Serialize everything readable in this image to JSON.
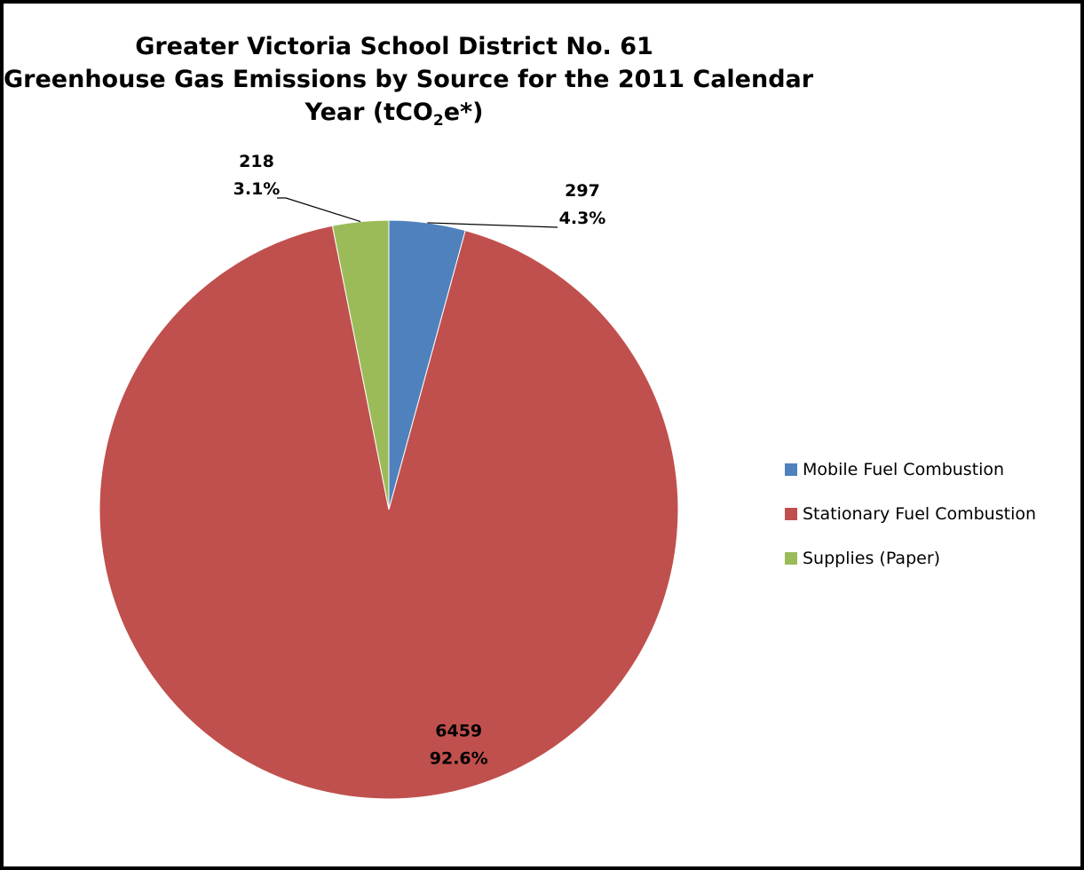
{
  "chart_data": {
    "type": "pie",
    "title_lines": [
      "Greater Victoria School District No. 61",
      "Greenhouse Gas Emissions by Source for the 2011 Calendar"
    ],
    "title_last_prefix": "Year (tCO",
    "title_last_sub": "2",
    "title_last_suffix": "e*)",
    "unit": "tCO2e*",
    "legend_position": "right",
    "start_angle_deg": 0,
    "direction": "clockwise",
    "slices": [
      {
        "label": "Mobile Fuel Combustion",
        "value": 297,
        "value_label": "297",
        "percent_label": "4.3%",
        "color": "#4f81bd"
      },
      {
        "label": "Stationary Fuel Combustion",
        "value": 6459,
        "value_label": "6459",
        "percent_label": "92.6%",
        "color": "#c0504d"
      },
      {
        "label": "Supplies (Paper)",
        "value": 218,
        "value_label": "218",
        "percent_label": "3.1%",
        "color": "#9bbb59"
      }
    ]
  },
  "colors": {
    "border": "#000000",
    "background": "#ffffff",
    "slice_edge": "#ffffff"
  }
}
